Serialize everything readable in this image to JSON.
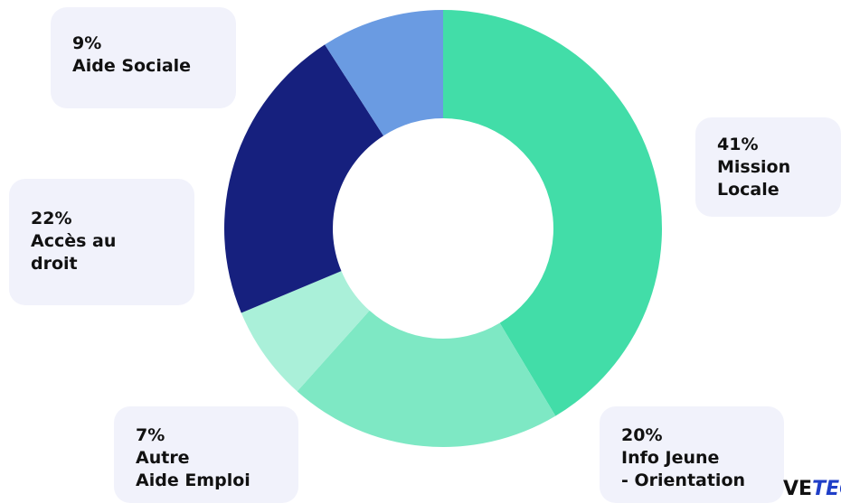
{
  "chart_data": {
    "type": "pie",
    "variant": "donut",
    "slices": [
      {
        "label": "Mission Locale",
        "pct_label": "41%",
        "color": "#42dda8",
        "share": 0.41
      },
      {
        "label": "Info Jeune - Orientation",
        "pct_label": "20%",
        "color": "#7ee8c4",
        "share": 0.2
      },
      {
        "label": "Autre Aide Emploi",
        "pct_label": "7%",
        "color": "#aaf0d9",
        "share": 0.07
      },
      {
        "label": "Accès au droit",
        "pct_label": "22%",
        "color": "#16207e",
        "share": 0.22
      },
      {
        "label": "Aide Sociale",
        "pct_label": "9%",
        "color": "#6a9be2",
        "share": 0.09
      }
    ]
  },
  "labels": {
    "aide_sociale": {
      "pct": "9%",
      "name": "Aide Sociale"
    },
    "acces_droit": {
      "pct": "22%",
      "name": "Accès au\ndroit"
    },
    "mission_locale": {
      "pct": "41%",
      "name": "Mission\nLocale"
    },
    "autre_emploi": {
      "pct": "7%",
      "name": "Autre\nAide Emploi"
    },
    "info_jeune": {
      "pct": "20%",
      "name": "Info Jeune\n- Orientation"
    }
  },
  "brand": {
    "part1": "VE",
    "part2": "TECH"
  },
  "colors": {
    "label_bg": "#f1f2fb",
    "text": "#111111",
    "brand_accent": "#1f3ec7"
  }
}
